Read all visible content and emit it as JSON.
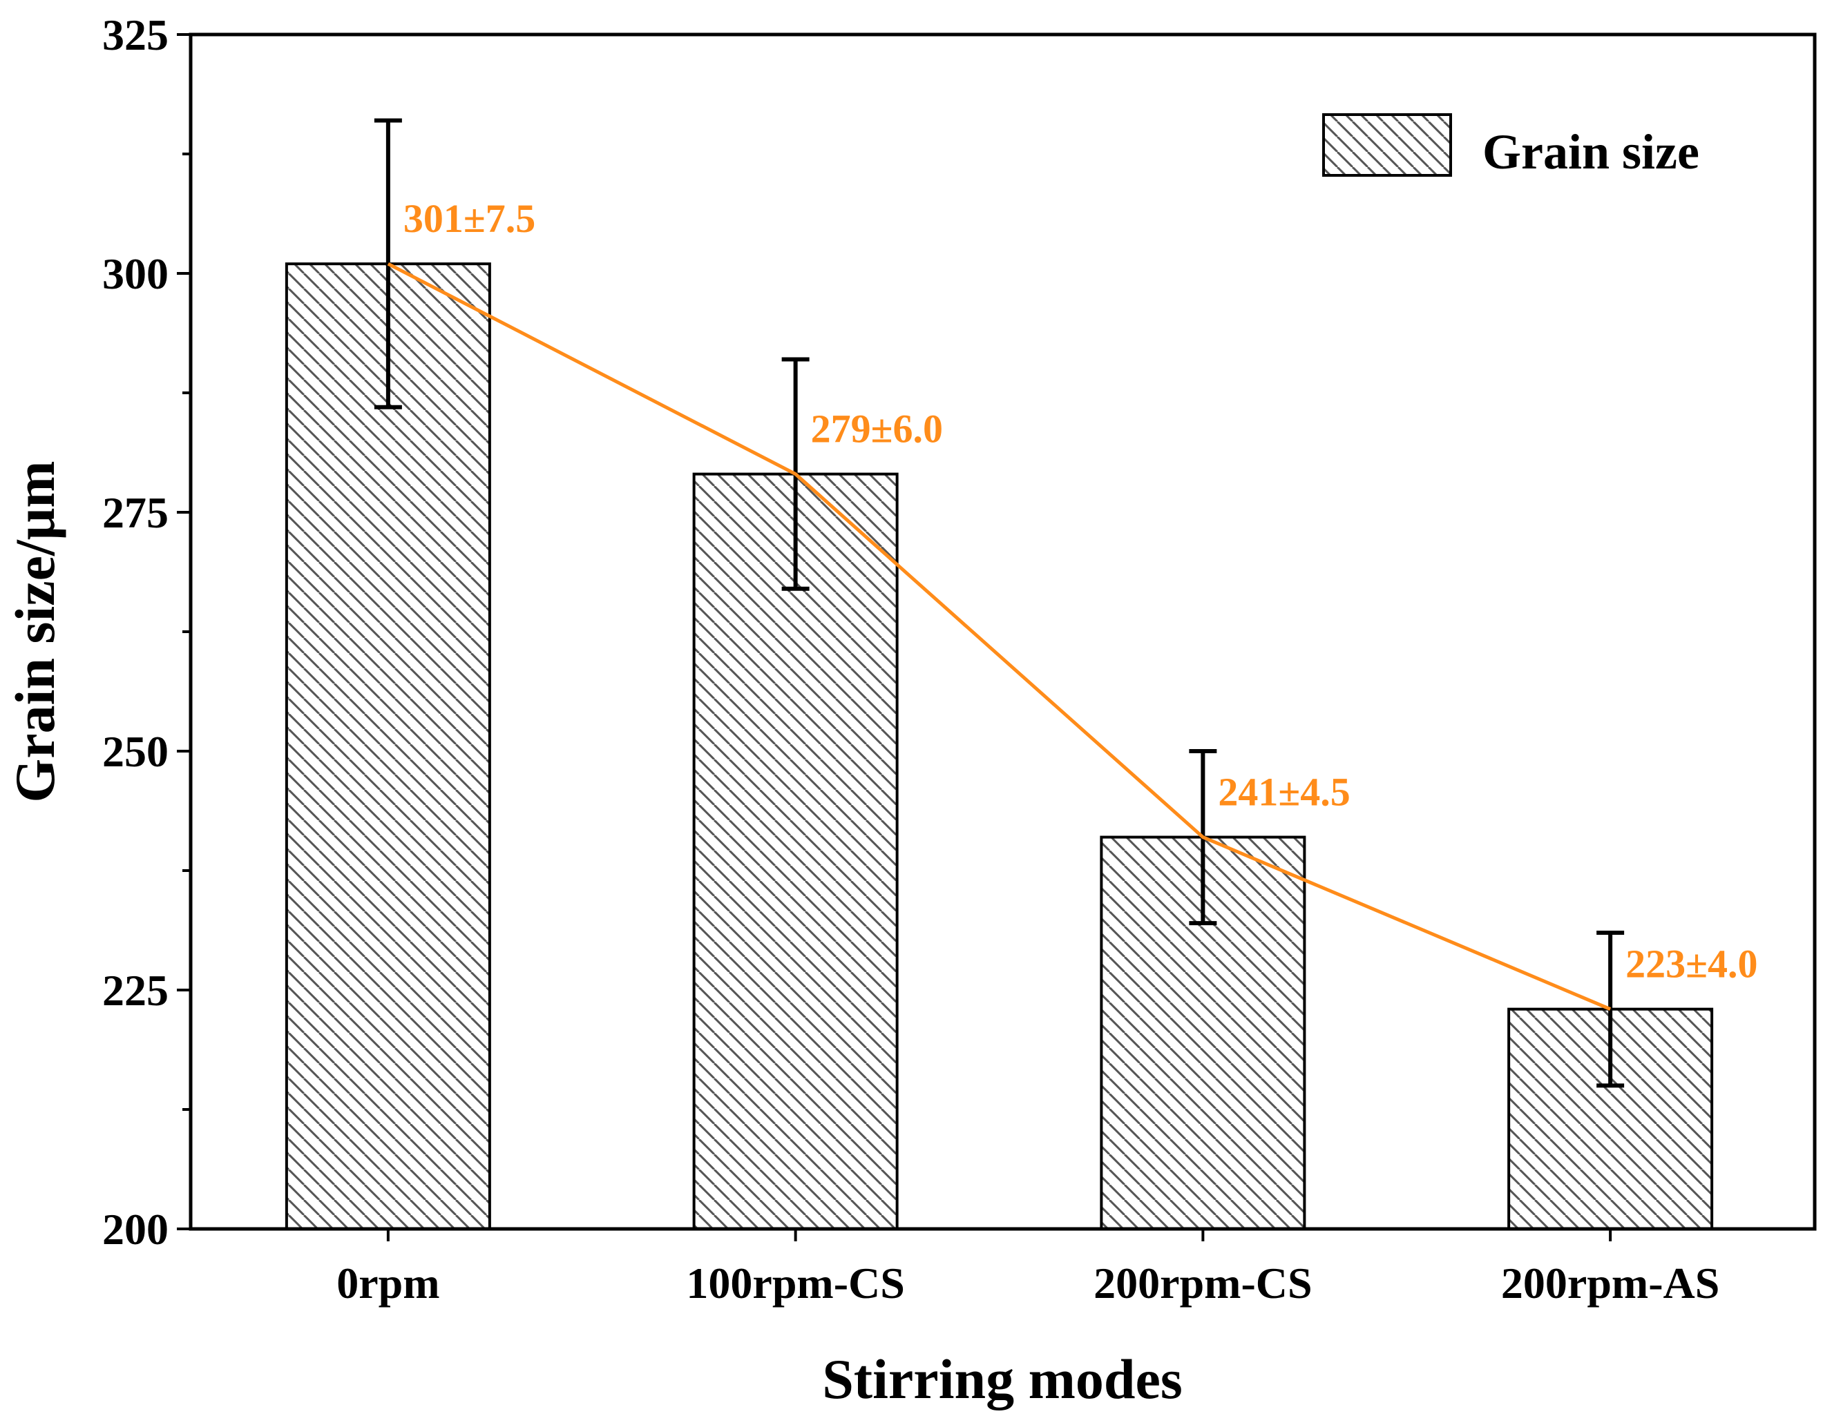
{
  "chart_data": {
    "type": "bar",
    "title": "",
    "xlabel": "Stirring modes",
    "ylabel": "Grain size/μm",
    "ylim": [
      200,
      325
    ],
    "yticks": [
      200,
      225,
      250,
      275,
      300,
      325
    ],
    "y_minor_tick_step": 12.5,
    "categories": [
      "0rpm",
      "100rpm-CS",
      "200rpm-CS",
      "200rpm-AS"
    ],
    "series": [
      {
        "name": "Grain size",
        "values": [
          301,
          279,
          241,
          223
        ],
        "error_upper": [
          316,
          291,
          250,
          231
        ],
        "error_lower": [
          286,
          267,
          232,
          215
        ],
        "pattern": "diagonal-hatch",
        "fill_color": "#ffffff",
        "hatch_color": "#555555"
      }
    ],
    "trend_line": {
      "color": "#ff8c1a",
      "values": [
        301,
        279,
        241,
        223
      ]
    },
    "data_labels": [
      "301±7.5",
      "279±6.0",
      "241±4.5",
      "223±4.0"
    ],
    "data_label_color": "#ff8c1a",
    "legend": {
      "entries": [
        "Grain size"
      ],
      "placement": "top-right"
    },
    "grid": false
  }
}
